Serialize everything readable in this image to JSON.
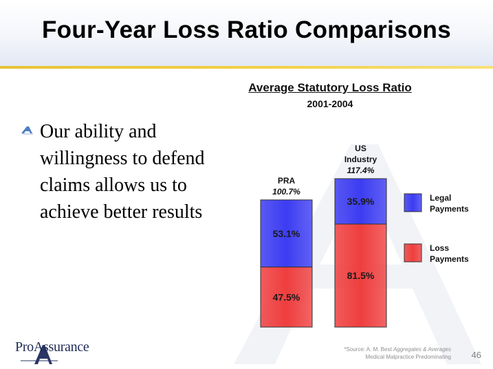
{
  "slide": {
    "title": "Four-Year Loss Ratio Comparisons",
    "bullet": "Our ability and willingness to defend claims allows us to achieve better results",
    "logo_text": "ProAssurance",
    "source_prefix": "*Source: A. M. Best",
    "source_italic": "Aggregates & Averages",
    "source_line2": "Medical Malpractice Predominating",
    "page_number": "46"
  },
  "colors": {
    "legal": "#3c3cf2",
    "loss": "#ef3e3e",
    "rule": "#ebc53a",
    "title": "#000000"
  },
  "chart_data": {
    "type": "bar",
    "stacked": true,
    "title": "Average Statutory Loss Ratio",
    "subtitle": "2001-2004",
    "categories": [
      {
        "name_lines": [
          "PRA"
        ],
        "total_label": "100.7%",
        "total": 100.7
      },
      {
        "name_lines": [
          "US",
          "Industry"
        ],
        "total_label": "117.4%",
        "total": 117.4
      }
    ],
    "series": [
      {
        "name_lines": [
          "Loss",
          "Payments"
        ],
        "color": "#ef3e3e",
        "values": [
          47.5,
          81.5
        ],
        "labels": [
          "47.5%",
          "81.5%"
        ]
      },
      {
        "name_lines": [
          "Legal",
          "Payments"
        ],
        "color": "#3c3cf2",
        "values": [
          53.1,
          35.9
        ],
        "labels": [
          "53.1%",
          "35.9%"
        ]
      }
    ],
    "legend_position": "right",
    "ylim": [
      0,
      117.4
    ]
  }
}
